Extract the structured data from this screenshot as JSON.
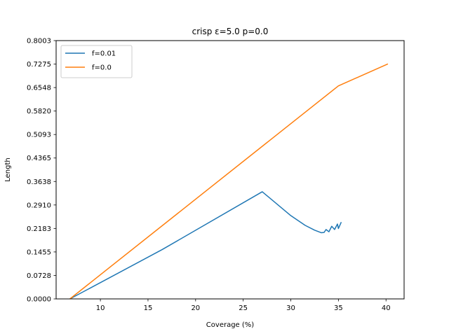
{
  "chart_data": {
    "type": "line",
    "title": "crisp ε=5.0 p=0.0",
    "xlabel": "Coverage (%)",
    "ylabel": "Length",
    "xlim": [
      5.35,
      41.9
    ],
    "ylim": [
      0.0,
      0.8003
    ],
    "xticks": [
      10,
      15,
      20,
      25,
      30,
      35,
      40
    ],
    "xtick_labels": [
      "10",
      "15",
      "20",
      "25",
      "30",
      "35",
      "40"
    ],
    "yticks": [
      0.0,
      0.0728,
      0.1455,
      0.2183,
      0.291,
      0.3638,
      0.4365,
      0.5093,
      0.582,
      0.6548,
      0.7275,
      0.8003
    ],
    "ytick_labels": [
      "0.0000",
      "0.0728",
      "0.1455",
      "0.2183",
      "0.2910",
      "0.3638",
      "0.4365",
      "0.5093",
      "0.5820",
      "0.6548",
      "0.7275",
      "0.8003"
    ],
    "grid": false,
    "legend_position": "upper-left",
    "series": [
      {
        "name": "f=0.01",
        "color": "#1f77b4",
        "points": [
          [
            6.8,
            0.0
          ],
          [
            16.5,
            0.153
          ],
          [
            27.0,
            0.332
          ],
          [
            30.0,
            0.258
          ],
          [
            31.5,
            0.228
          ],
          [
            32.5,
            0.213
          ],
          [
            33.2,
            0.205
          ],
          [
            33.5,
            0.206
          ],
          [
            33.7,
            0.215
          ],
          [
            34.0,
            0.208
          ],
          [
            34.3,
            0.225
          ],
          [
            34.6,
            0.215
          ],
          [
            34.9,
            0.232
          ],
          [
            35.0,
            0.218
          ],
          [
            35.3,
            0.238
          ]
        ]
      },
      {
        "name": "f=0.0",
        "color": "#ff7f0e",
        "points": [
          [
            6.8,
            0.0
          ],
          [
            35.0,
            0.66
          ],
          [
            40.2,
            0.728
          ]
        ]
      }
    ]
  }
}
